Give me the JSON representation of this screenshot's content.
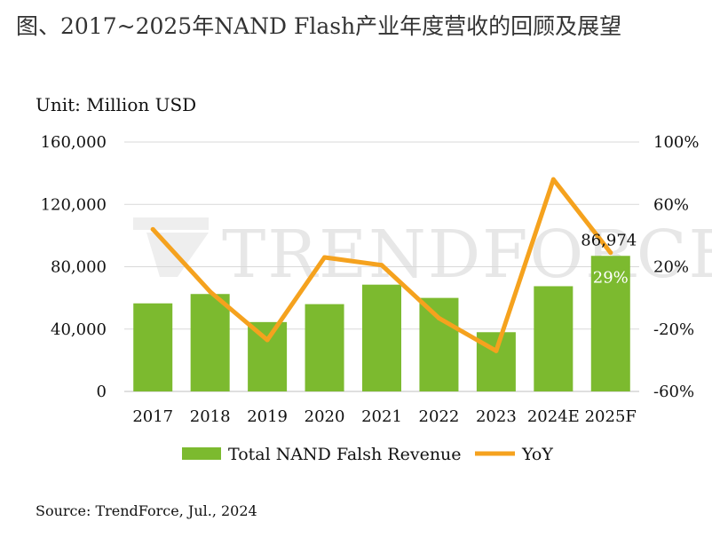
{
  "title": "图、2017~2025年NAND Flash产业年度营收的回顾及展望",
  "unit_label": "Unit: Million USD",
  "source": "Source: TrendForce, Jul., 2024",
  "watermark": "TRENDFORCE",
  "colors": {
    "bar": "#7cba2f",
    "line": "#f5a21e",
    "grid": "#d9d9d9"
  },
  "chart_data": {
    "type": "bar",
    "categories": [
      "2017",
      "2018",
      "2019",
      "2020",
      "2021",
      "2022",
      "2023",
      "2024E",
      "2025F"
    ],
    "series": [
      {
        "name": "Total NAND Falsh Revenue",
        "type": "bar",
        "axis": "left",
        "values": [
          56500,
          62500,
          44500,
          56000,
          68500,
          60000,
          38000,
          67500,
          86974
        ]
      },
      {
        "name": "YoY",
        "type": "line",
        "axis": "right",
        "values": [
          44,
          4,
          -27,
          26,
          21,
          -13,
          -34,
          76,
          29
        ]
      }
    ],
    "ylim": [
      0,
      160000
    ],
    "yticks": [
      0,
      40000,
      80000,
      120000,
      160000
    ],
    "ytick_labels": [
      "0",
      "40,000",
      "80,000",
      "120,000",
      "160,000"
    ],
    "y2lim": [
      -60,
      100
    ],
    "y2ticks": [
      -60,
      -20,
      20,
      60,
      100
    ],
    "y2tick_labels": [
      "-60%",
      "-20%",
      "20%",
      "60%",
      "100%"
    ],
    "annotations": [
      {
        "category": "2025F",
        "series": "Total NAND Falsh Revenue",
        "text": "86,974"
      },
      {
        "category": "2025F",
        "series": "YoY",
        "text": "29%"
      }
    ],
    "grid": true,
    "legend": "bottom"
  }
}
